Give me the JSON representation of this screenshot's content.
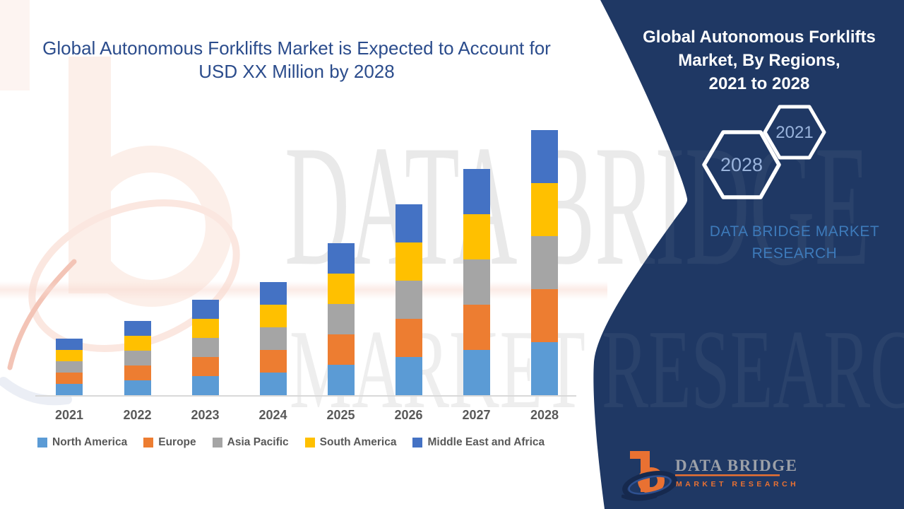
{
  "canvas": {
    "bg": "#ffffff",
    "panel_color": "#1F3864"
  },
  "left_title": {
    "line1": "Global Autonomous Forklifts Market is Expected to Account for",
    "line2": "USD XX Million by 2028",
    "color": "#2B4C8C"
  },
  "chart_data": {
    "type": "bar",
    "stacked": true,
    "title": "Global Autonomous Forklifts Market is Expected to Account for USD XX Million by 2028",
    "xlabel": "",
    "ylabel": "",
    "units": "relative height units (numeric value axis not shown; values are USD XX Million placeholders)",
    "grid": false,
    "legend_position": "bottom",
    "categories": [
      "2021",
      "2022",
      "2023",
      "2024",
      "2025",
      "2026",
      "2027",
      "2028"
    ],
    "series": [
      {
        "name": "North America",
        "color": "#5B9BD5",
        "values": [
          16,
          21,
          27,
          32,
          43,
          54,
          64,
          75
        ]
      },
      {
        "name": "Europe",
        "color": "#ED7D31",
        "values": [
          16,
          21,
          27,
          32,
          43,
          54,
          64,
          75
        ]
      },
      {
        "name": "Asia Pacific",
        "color": "#A5A5A5",
        "values": [
          16,
          21,
          27,
          32,
          43,
          54,
          64,
          75
        ]
      },
      {
        "name": "South America",
        "color": "#FFC000",
        "values": [
          16,
          21,
          27,
          32,
          43,
          54,
          64,
          75
        ]
      },
      {
        "name": "Middle East and Africa",
        "color": "#4472C4",
        "values": [
          16,
          21,
          27,
          32,
          43,
          54,
          64,
          75
        ]
      }
    ],
    "stack_totals": [
      80,
      105,
      135,
      160,
      215,
      270,
      320,
      375
    ]
  },
  "panel": {
    "title_line1": "Global Autonomous Forklifts",
    "title_line2": "Market, By Regions,",
    "title_line3": "2021 to 2028",
    "hexagon_back_label": "2028",
    "hexagon_front_label": "2021",
    "hexagon_label_color": "#9AB4DC",
    "brand_line1": "DATA BRIDGE MARKET",
    "brand_line2": "RESEARCH",
    "brand_color": "#3D7ABA"
  },
  "watermark": {
    "line1": "DATA BRIDGE",
    "line2": "MARKET RESEARCH"
  },
  "logo": {
    "brand": "DATA BRIDGE",
    "sub": "MARKET RESEARCH"
  }
}
